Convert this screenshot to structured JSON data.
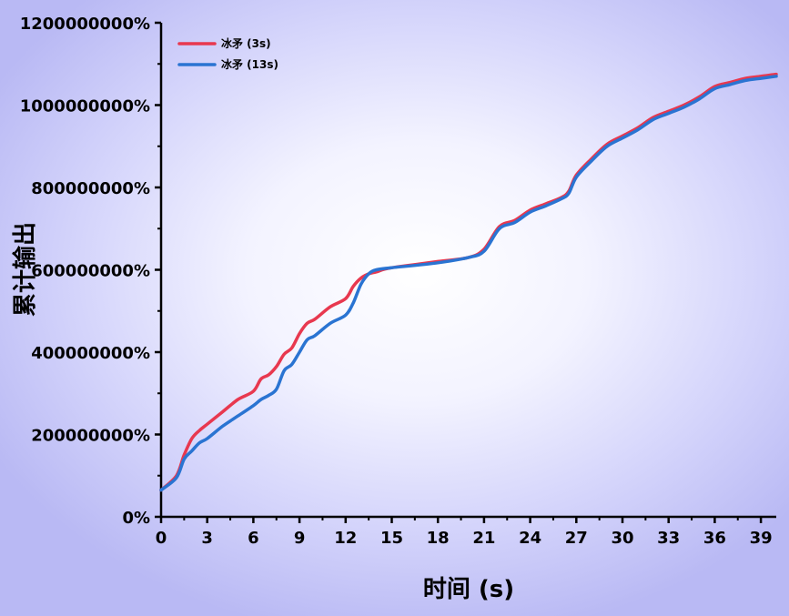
{
  "chart_data": {
    "type": "line",
    "title": "",
    "xlabel": "时间 (s)",
    "ylabel": "累计输出",
    "xlim": [
      0,
      40
    ],
    "ylim": [
      0,
      1200000000
    ],
    "x_ticks": [
      0,
      3,
      6,
      9,
      12,
      15,
      18,
      21,
      24,
      27,
      30,
      33,
      36,
      39
    ],
    "x_tick_labels": [
      "0",
      "3",
      "6",
      "9",
      "12",
      "15",
      "18",
      "21",
      "24",
      "27",
      "30",
      "33",
      "36",
      "39"
    ],
    "y_ticks": [
      0,
      200000000,
      400000000,
      600000000,
      800000000,
      1000000000,
      1200000000
    ],
    "y_tick_labels": [
      "0%",
      "200000000%",
      "400000000%",
      "600000000%",
      "800000000%",
      "1000000000%",
      "1200000000%"
    ],
    "grid": false,
    "legend_position": "top-left",
    "series": [
      {
        "name": "冰矛 (3s)",
        "color": "#e8384f",
        "x": [
          0,
          1,
          1.5,
          2,
          2.5,
          3,
          4,
          5,
          6,
          6.5,
          7,
          7.5,
          8,
          8.5,
          9,
          9.5,
          10,
          11,
          12,
          12.5,
          13,
          13.5,
          14,
          15,
          18,
          20,
          21,
          22,
          23,
          24,
          25,
          26,
          26.5,
          27,
          28,
          29,
          30,
          31,
          32,
          33,
          34,
          35,
          36,
          37,
          38,
          39,
          40
        ],
        "y": [
          65000000,
          100000000,
          150000000,
          190000000,
          210000000,
          225000000,
          255000000,
          285000000,
          305000000,
          335000000,
          345000000,
          365000000,
          395000000,
          410000000,
          445000000,
          470000000,
          480000000,
          510000000,
          530000000,
          560000000,
          580000000,
          590000000,
          595000000,
          605000000,
          620000000,
          630000000,
          650000000,
          705000000,
          720000000,
          745000000,
          760000000,
          775000000,
          790000000,
          830000000,
          870000000,
          905000000,
          925000000,
          945000000,
          970000000,
          985000000,
          1000000000,
          1020000000,
          1045000000,
          1055000000,
          1065000000,
          1070000000,
          1075000000
        ]
      },
      {
        "name": "冰矛 (13s)",
        "color": "#2a74d2",
        "x": [
          0,
          1,
          1.5,
          2,
          2.5,
          3,
          4,
          5,
          6,
          6.5,
          7,
          7.5,
          8,
          8.5,
          9,
          9.5,
          10,
          11,
          12,
          12.5,
          13,
          13.5,
          14,
          15,
          18,
          20,
          21,
          22,
          23,
          24,
          25,
          26,
          26.5,
          27,
          28,
          29,
          30,
          31,
          32,
          33,
          34,
          35,
          36,
          37,
          38,
          39,
          40
        ],
        "y": [
          65000000,
          95000000,
          140000000,
          160000000,
          180000000,
          190000000,
          220000000,
          245000000,
          270000000,
          285000000,
          295000000,
          310000000,
          355000000,
          370000000,
          400000000,
          430000000,
          440000000,
          470000000,
          490000000,
          520000000,
          565000000,
          590000000,
          600000000,
          605000000,
          617000000,
          630000000,
          645000000,
          700000000,
          715000000,
          740000000,
          755000000,
          772000000,
          785000000,
          825000000,
          865000000,
          900000000,
          920000000,
          940000000,
          965000000,
          980000000,
          995000000,
          1015000000,
          1040000000,
          1050000000,
          1060000000,
          1065000000,
          1070000000
        ]
      }
    ]
  }
}
